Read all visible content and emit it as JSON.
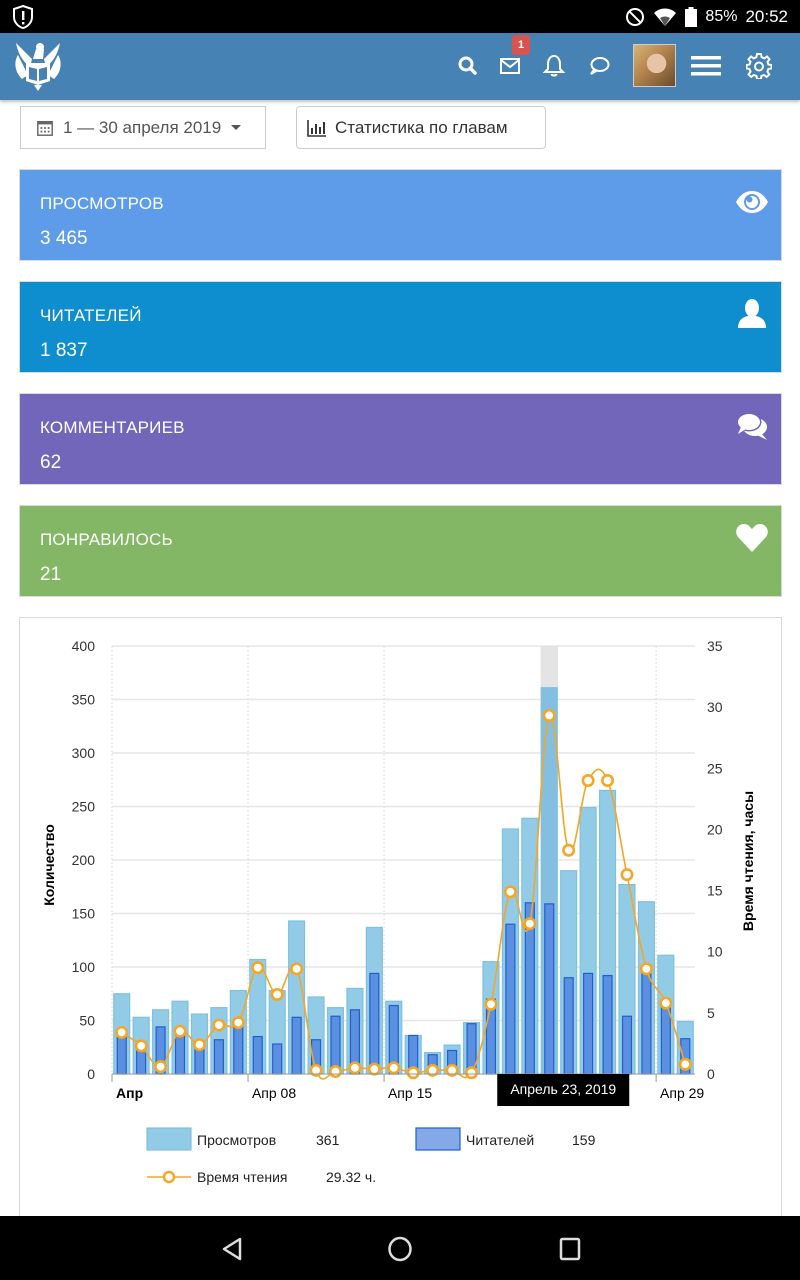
{
  "statusbar": {
    "battery": "85%",
    "time": "20:52",
    "icons": [
      "alert-shield-icon",
      "do-not-disturb-icon",
      "wifi-icon",
      "battery-icon"
    ]
  },
  "appbar": {
    "icons": [
      "logo-eagle-book",
      "search-icon",
      "mail-icon",
      "bell-icon",
      "chat-icon",
      "avatar",
      "menu-icon",
      "gear-icon"
    ],
    "mail_badge": "1"
  },
  "toolbar": {
    "date_range": "1 — 30 апреля 2019",
    "chapters_stats": "Статистика по главам"
  },
  "cards": [
    {
      "label": "ПРОСМОТРОВ",
      "value": "3 465",
      "color": "#5e9be9",
      "icon": "eye-icon"
    },
    {
      "label": "ЧИТАТЕЛЕЙ",
      "value": "1 837",
      "color": "#0e8ecf",
      "icon": "user-icon"
    },
    {
      "label": "КОММЕНТАРИЕВ",
      "value": "62",
      "color": "#7266ba",
      "icon": "comments-icon"
    },
    {
      "label": "ПОНРАВИЛОСЬ",
      "value": "21",
      "color": "#83b765",
      "icon": "heart-icon"
    }
  ],
  "chart_data": {
    "type": "bar",
    "title": "",
    "xlabel": "",
    "ylabel": "Количество",
    "y2label": "Время чтения, часы",
    "ylim": [
      0,
      400
    ],
    "y2lim": [
      0,
      35
    ],
    "yticks": [
      "0",
      "50",
      "100",
      "150",
      "200",
      "250",
      "300",
      "350",
      "400"
    ],
    "y2ticks": [
      "0",
      "5",
      "10",
      "15",
      "20",
      "25",
      "30",
      "35"
    ],
    "xticks": [
      {
        "label": "Апр",
        "day": 1,
        "bold": true
      },
      {
        "label": "Апр 08",
        "day": 8
      },
      {
        "label": "Апр 15",
        "day": 15
      },
      {
        "label": "Апр 29",
        "day": 29
      }
    ],
    "grid": true,
    "legend_position": "bottom",
    "categories": [
      "1",
      "2",
      "3",
      "4",
      "5",
      "6",
      "7",
      "8",
      "9",
      "10",
      "11",
      "12",
      "13",
      "14",
      "15",
      "16",
      "17",
      "18",
      "19",
      "20",
      "21",
      "22",
      "23",
      "24",
      "25",
      "26",
      "27",
      "28",
      "29",
      "30"
    ],
    "series": [
      {
        "name": "Просмотров",
        "type": "bar",
        "axis": "left",
        "color": "#92cbe6",
        "values": [
          75,
          53,
          60,
          68,
          56,
          62,
          78,
          107,
          78,
          143,
          72,
          62,
          80,
          137,
          68,
          36,
          20,
          27,
          48,
          105,
          229,
          239,
          361,
          190,
          249,
          265,
          177,
          161,
          111,
          49
        ]
      },
      {
        "name": "Читателей",
        "type": "bar",
        "axis": "left",
        "color": "#5b8fe0",
        "values": [
          38,
          30,
          44,
          37,
          30,
          32,
          45,
          35,
          28,
          53,
          32,
          54,
          60,
          94,
          64,
          36,
          18,
          22,
          47,
          70,
          140,
          160,
          159,
          90,
          94,
          92,
          54,
          97,
          64,
          33
        ]
      },
      {
        "name": "Время чтения",
        "type": "line",
        "axis": "right",
        "color": "#f5a623",
        "values": [
          3.4,
          2.3,
          0.6,
          3.5,
          2.4,
          4.0,
          4.2,
          8.7,
          6.5,
          8.6,
          0.3,
          0.2,
          0.5,
          0.4,
          0.5,
          0.1,
          0.3,
          0.3,
          0.1,
          5.7,
          14.9,
          12.3,
          29.32,
          18.3,
          24.0,
          24.0,
          16.3,
          8.6,
          5.8,
          0.8
        ]
      }
    ],
    "highlight": {
      "index": 22,
      "tooltip": "Апрель 23, 2019"
    },
    "legend": [
      {
        "name": "Просмотров",
        "value": "361"
      },
      {
        "name": "Читателей",
        "value": "159"
      },
      {
        "name": "Время чтения",
        "value": "29.32 ч."
      }
    ]
  },
  "navbar": {
    "buttons": [
      "back-icon",
      "home-icon",
      "recents-icon"
    ]
  }
}
